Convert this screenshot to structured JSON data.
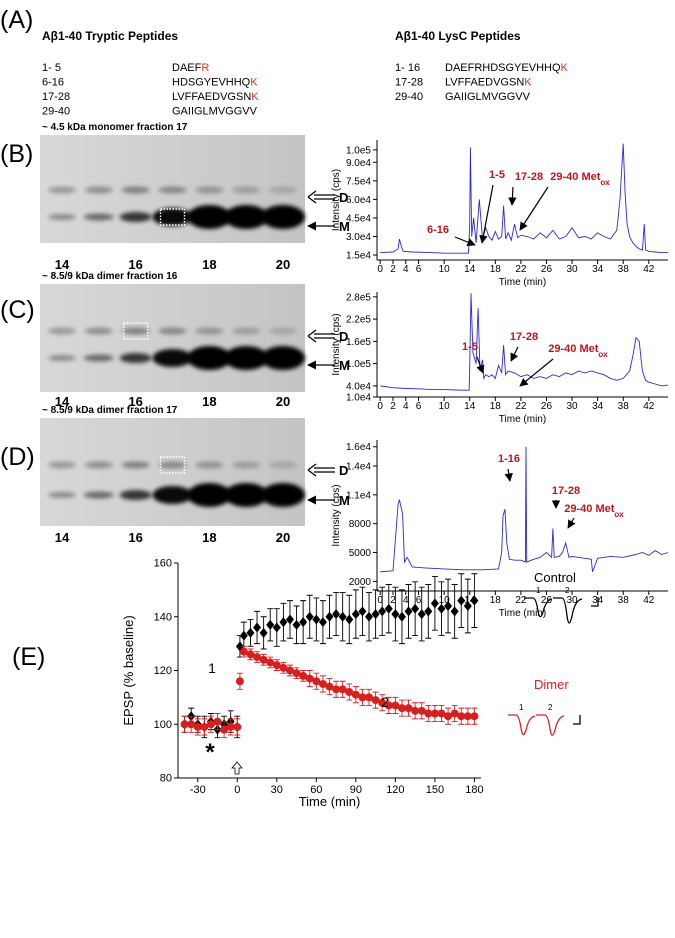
{
  "peptides": {
    "panel": "(A)",
    "highlight_color": "#e8301c",
    "tryptic": {
      "title": "Aβ1-40 Tryptic Peptides",
      "rows": [
        {
          "range": "1- 5",
          "sequence": "DAEF",
          "terminal": "R"
        },
        {
          "range": "6-16",
          "sequence": "HDSGYEVHHQ",
          "terminal": "K"
        },
        {
          "range": "17-28",
          "sequence": "LVFFAEDVGSN",
          "terminal": "K"
        },
        {
          "range": "29-40",
          "sequence": "GAIIGLMVGGVV"
        }
      ]
    },
    "lysc": {
      "title": "Aβ1-40 LysC Peptides",
      "rows": [
        {
          "range": "1- 16",
          "sequence": "DAEFRHDSGYEVHHQ",
          "terminal": "K"
        },
        {
          "range": "17-28",
          "sequence": "LVFFAEDVGSN",
          "terminal": "K"
        },
        {
          "range": "29-40",
          "sequence": "GAIIGLMVGGVV"
        }
      ]
    }
  },
  "chart_data": [
    {
      "type": "line",
      "panel": "(B)",
      "gel": {
        "title": "~ 4.5 kDa monomer fraction 17",
        "lanes": [
          "14",
          "16",
          "18",
          "20"
        ],
        "bands": [
          "D",
          "M"
        ]
      },
      "x": [
        0,
        2,
        2.8,
        3,
        3.3,
        3.6,
        5,
        8,
        10,
        13.8,
        14,
        14.1,
        14.3,
        14.6,
        15,
        15.5,
        16,
        16.5,
        17,
        17.5,
        18,
        18.5,
        19,
        19.3,
        19.6,
        20,
        20.5,
        21,
        21.5,
        22,
        23,
        24,
        25,
        26,
        27,
        28,
        29,
        30,
        31,
        32,
        33,
        34,
        35,
        36,
        37,
        37.5,
        38,
        38.3,
        38.6,
        39,
        39.5,
        40,
        40.5,
        41,
        41.3,
        41.5,
        42,
        43,
        44,
        45
      ],
      "values": [
        17000,
        17500,
        20000,
        28000,
        22000,
        18000,
        17500,
        17000,
        16500,
        16500,
        40000,
        102000,
        30000,
        45000,
        25000,
        60000,
        28000,
        37000,
        30000,
        27000,
        34000,
        28000,
        30000,
        55000,
        28000,
        33000,
        27000,
        40000,
        29000,
        31000,
        30000,
        28000,
        33000,
        29000,
        35000,
        28000,
        30000,
        37000,
        29000,
        30000,
        28000,
        33000,
        30000,
        28000,
        35000,
        60000,
        105000,
        65000,
        40000,
        30000,
        25000,
        22000,
        20000,
        19000,
        40000,
        19000,
        18000,
        17500,
        17000,
        17000
      ],
      "color": "#2b2bd6",
      "xlim": [
        -0.5,
        45
      ],
      "ylim": [
        11000,
        108000
      ],
      "xticks": [
        0,
        2,
        4,
        6,
        10,
        14,
        18,
        22,
        26,
        30,
        34,
        38,
        42
      ],
      "yticks": [
        {
          "value": 15000,
          "label": "1.5e4"
        },
        {
          "value": 30000,
          "label": "3.0e4"
        },
        {
          "value": 45000,
          "label": "4.5e4"
        },
        {
          "value": 60000,
          "label": "6.0e4"
        },
        {
          "value": 75000,
          "label": "7.5e4"
        },
        {
          "value": 90000,
          "label": "9.0e4"
        },
        {
          "value": 100000,
          "label": "1.0e5"
        }
      ],
      "x_label": "Time (min)",
      "y_label": "Intensity (cps)",
      "annotation_color": "#c0141c",
      "annotations": [
        {
          "text": "1-5"
        },
        {
          "text": "6-16"
        },
        {
          "text": "17-28"
        },
        {
          "text": "29-40 Met",
          "sub": "ox"
        }
      ]
    },
    {
      "type": "line",
      "panel": "(C)",
      "gel": {
        "title": "~ 8.5/9 kDa dimer fraction 16",
        "lanes": [
          "14",
          "16",
          "18",
          "20"
        ],
        "bands": [
          "D",
          "M"
        ]
      },
      "x": [
        0,
        2,
        4,
        6,
        8,
        10,
        12,
        13.9,
        14,
        14.2,
        14.5,
        15,
        15.3,
        15.6,
        16,
        16.2,
        16.5,
        17,
        17.5,
        18,
        18.5,
        19,
        19.3,
        19.6,
        20,
        21,
        22,
        23,
        24,
        25,
        26,
        27,
        28,
        29,
        30,
        31,
        32,
        33,
        34,
        35,
        36,
        37,
        38,
        39,
        39.5,
        40,
        40.5,
        41,
        41.5,
        42,
        43,
        44,
        45
      ],
      "values": [
        40000,
        35000,
        33000,
        32000,
        30000,
        30000,
        29000,
        28000,
        90000,
        290000,
        130000,
        100000,
        250000,
        80000,
        110000,
        60000,
        70000,
        65000,
        70000,
        60000,
        95000,
        75000,
        150000,
        70000,
        80000,
        75000,
        65000,
        70000,
        60000,
        65000,
        60000,
        70000,
        65000,
        75000,
        70000,
        80000,
        75000,
        80000,
        75000,
        70000,
        60000,
        55000,
        60000,
        80000,
        120000,
        170000,
        160000,
        80000,
        55000,
        50000,
        45000,
        40000,
        42000
      ],
      "color": "#2b2bd6",
      "xlim": [
        -0.5,
        45
      ],
      "ylim": [
        10000,
        293000
      ],
      "xticks": [
        0,
        2,
        4,
        6,
        10,
        14,
        18,
        22,
        26,
        30,
        34,
        38,
        42
      ],
      "yticks": [
        {
          "value": 10000,
          "label": "1.0e4"
        },
        {
          "value": 40000,
          "label": "4.0e4"
        },
        {
          "value": 100000,
          "label": "1.0e5"
        },
        {
          "value": 160000,
          "label": "1.6e5"
        },
        {
          "value": 220000,
          "label": "2.2e5"
        },
        {
          "value": 280000,
          "label": "2.8e5"
        }
      ],
      "x_label": "Time (min)",
      "y_label": "Intensity (cps)",
      "annotation_color": "#c0141c",
      "annotations": [
        {
          "text": "1-5"
        },
        {
          "text": "17-28"
        },
        {
          "text": "29-40 Met",
          "sub": "ox"
        }
      ]
    },
    {
      "type": "line",
      "panel": "(D)",
      "gel": {
        "title": "~ 8.5/9 kDa dimer fraction 17",
        "lanes": [
          "14",
          "16",
          "18",
          "20"
        ],
        "bands": [
          "D",
          "M"
        ]
      },
      "x": [
        0,
        2,
        2.8,
        3,
        3.5,
        3.8,
        4.2,
        5,
        7,
        10,
        13,
        16,
        18.5,
        19,
        19.2,
        19.5,
        19.8,
        20.2,
        21,
        22,
        22.7,
        22.8,
        22.9,
        24,
        25,
        26,
        26.8,
        27,
        27.2,
        28,
        28.5,
        29,
        29.5,
        30,
        32,
        33,
        33.2,
        34,
        36,
        38,
        40,
        41,
        42,
        43,
        44,
        45
      ],
      "values": [
        3000,
        3100,
        10000,
        10500,
        9000,
        4000,
        4500,
        3500,
        3400,
        3300,
        3200,
        3200,
        3300,
        5000,
        8800,
        9500,
        6000,
        4300,
        4200,
        4200,
        4000,
        16000,
        4000,
        4300,
        4500,
        5000,
        4500,
        7500,
        4500,
        4600,
        5000,
        6000,
        4500,
        4600,
        4400,
        4300,
        3000,
        4400,
        4600,
        4500,
        4800,
        5000,
        4700,
        5200,
        4800,
        5000
      ],
      "color": "#2b2bd6",
      "xlim": [
        -0.5,
        45
      ],
      "ylim": [
        1000,
        16700
      ],
      "xticks": [
        0,
        2,
        4,
        6,
        10,
        14,
        18,
        22,
        26,
        30,
        34,
        38,
        42
      ],
      "yticks": [
        2000,
        5000,
        8000,
        {
          "value": 11000,
          "label": "1.1e4"
        },
        {
          "value": 14000,
          "label": "1.4e4"
        },
        {
          "value": 16000,
          "label": "1.6e4"
        }
      ],
      "x_label": "Time (min)",
      "y_label": "Intensity (cps)",
      "annotation_color": "#c0141c",
      "annotations": [
        {
          "text": "1-16"
        },
        {
          "text": "17-28"
        },
        {
          "text": "29-40 Met",
          "sub": "ox"
        }
      ]
    },
    {
      "type": "scatter",
      "panel": "(E)",
      "x": [
        -40,
        -35,
        -30,
        -25,
        -20,
        -15,
        -10,
        -5,
        0,
        2,
        5,
        10,
        15,
        20,
        25,
        30,
        35,
        40,
        45,
        50,
        55,
        60,
        65,
        70,
        75,
        80,
        85,
        90,
        95,
        100,
        105,
        110,
        115,
        120,
        125,
        130,
        135,
        140,
        145,
        150,
        155,
        160,
        165,
        170,
        175,
        180
      ],
      "series": [
        {
          "name": "Control",
          "color": "#000000",
          "marker": "diamond",
          "values": [
            100,
            103,
            100,
            99,
            101,
            98,
            100,
            101,
            99,
            129,
            133,
            134,
            136,
            134,
            137,
            136,
            138,
            139,
            137,
            138,
            140,
            139,
            138,
            140,
            141,
            140,
            139,
            141,
            142,
            140,
            141,
            142,
            143,
            141,
            140,
            142,
            143,
            141,
            142,
            145,
            143,
            144,
            142,
            146,
            144,
            146
          ],
          "errors": [
            3,
            3,
            3,
            4,
            3,
            3,
            3,
            4,
            4,
            4,
            5,
            5,
            6,
            6,
            6,
            7,
            7,
            7,
            7,
            8,
            8,
            8,
            8,
            8,
            8,
            9,
            9,
            9,
            9,
            9,
            9,
            9,
            9,
            10,
            10,
            10,
            10,
            10,
            10,
            10,
            10,
            10,
            10,
            10,
            10,
            10
          ]
        },
        {
          "name": "Dimer",
          "color": "#d62020",
          "marker": "circle",
          "values": [
            100,
            100,
            99,
            99,
            100,
            101,
            98,
            99,
            99,
            116,
            127,
            126,
            125,
            124,
            123,
            122,
            121,
            120,
            119,
            118,
            117,
            116,
            115,
            114,
            113,
            113,
            112,
            111,
            110,
            110,
            109,
            108,
            107,
            107,
            106,
            106,
            105,
            105,
            104,
            104,
            104,
            103,
            104,
            103,
            103,
            103
          ],
          "errors": [
            3,
            3,
            3,
            3,
            3,
            3,
            3,
            3,
            3,
            3,
            2,
            2,
            2,
            2,
            2,
            2,
            2,
            2,
            2,
            2,
            3,
            3,
            3,
            3,
            3,
            3,
            3,
            3,
            3,
            3,
            3,
            3,
            3,
            3,
            3,
            3,
            3,
            3,
            3,
            3,
            3,
            3,
            3,
            3,
            3,
            3
          ]
        }
      ],
      "xlim": [
        -45,
        185
      ],
      "ylim": [
        80,
        160
      ],
      "xticks": [
        -30,
        0,
        30,
        60,
        90,
        120,
        150,
        180
      ],
      "yticks": [
        80,
        100,
        120,
        140,
        160
      ],
      "x_label": "Time (min)",
      "y_label": "EPSP (% baseline)",
      "annotations": [
        "1",
        "2",
        "*"
      ],
      "inset_labels": [
        "1",
        "2"
      ]
    }
  ]
}
